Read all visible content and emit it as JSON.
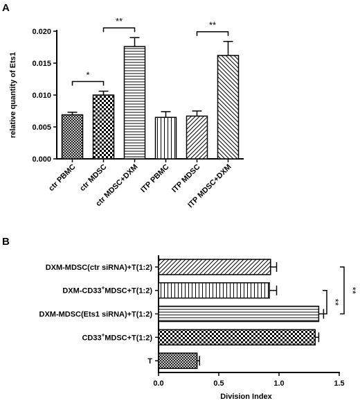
{
  "chart_data": [
    {
      "panel": "A",
      "type": "bar",
      "orientation": "vertical",
      "ylabel": "relative quantity of Ets1",
      "xlabel": "",
      "ylim": [
        0,
        0.02
      ],
      "yticks": [
        "0.000",
        "0.005",
        "0.010",
        "0.015",
        "0.020"
      ],
      "categories": [
        "ctr PBMC",
        "ctr MDSC",
        "ctr MDSC+DXM",
        "ITP PBMC",
        "ITP MDSC",
        "ITP MDSC+DXM"
      ],
      "values": [
        0.0069,
        0.01,
        0.0176,
        0.0065,
        0.0067,
        0.0162
      ],
      "errors": [
        0.0004,
        0.0006,
        0.0014,
        0.0009,
        0.0008,
        0.0022
      ],
      "patterns": [
        "crosshatch",
        "checker",
        "horizontal",
        "vertical",
        "diagonal",
        "diagonal-back"
      ],
      "significance": [
        {
          "from": 0,
          "to": 1,
          "label": "*"
        },
        {
          "from": 1,
          "to": 2,
          "label": "**"
        },
        {
          "from": 4,
          "to": 5,
          "label": "**"
        }
      ],
      "grid": false
    },
    {
      "panel": "B",
      "type": "bar",
      "orientation": "horizontal",
      "xlabel": "Division Index",
      "ylabel": "",
      "xlim": [
        0,
        1.5
      ],
      "xticks": [
        "0.0",
        "0.5",
        "1.0",
        "1.5"
      ],
      "categories": [
        {
          "pre": "DXM-MDSC(ctr siRNA)+T(1:2)",
          "sup": "",
          "post": ""
        },
        {
          "pre": "DXM-CD33",
          "sup": "+",
          "post": "MDSC+T(1:2)"
        },
        {
          "pre": "DXM-MDSC(Ets1 siRNA)+T(1:2)",
          "sup": "",
          "post": ""
        },
        {
          "pre": "CD33",
          "sup": "+",
          "post": "MDSC+T(1:2)"
        },
        {
          "pre": "T",
          "sup": "",
          "post": ""
        }
      ],
      "values": [
        0.93,
        0.92,
        1.33,
        1.3,
        0.32
      ],
      "errors": [
        0.05,
        0.06,
        0.04,
        0.03,
        0.02
      ],
      "patterns": [
        "diagonal",
        "vertical",
        "horizontal",
        "checker",
        "crosshatch"
      ],
      "significance": [
        {
          "from": 1,
          "to": 2,
          "label": "**"
        },
        {
          "from": 0,
          "to": 2,
          "label": "**"
        }
      ],
      "grid": false
    }
  ]
}
